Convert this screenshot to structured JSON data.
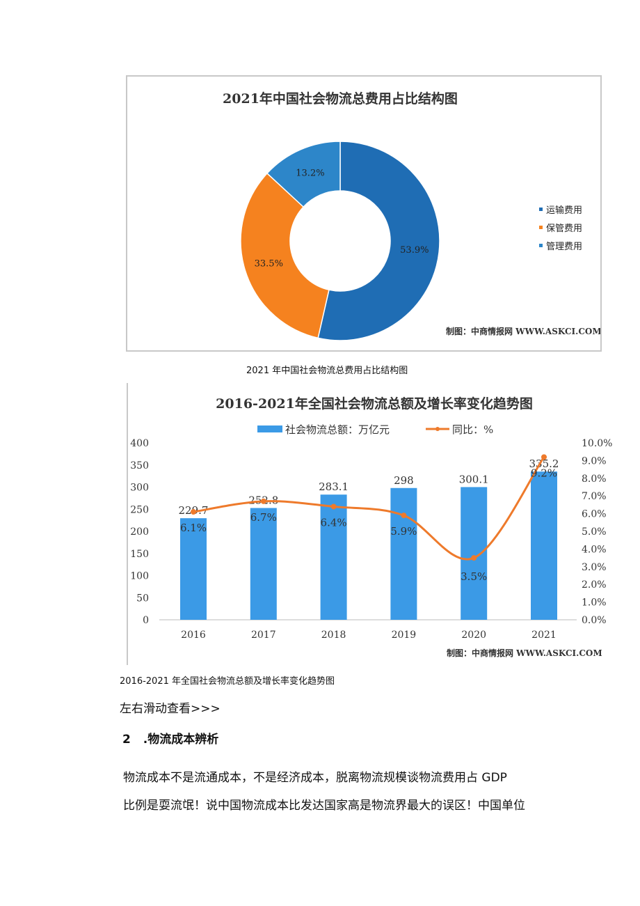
{
  "charts": {
    "donut_caption": "2021 年中国社会物流总费用占比结构图",
    "bar_caption": "2016-2021 年全国社会物流总额及增长率变化趋势图"
  },
  "chart_data": [
    {
      "type": "pie",
      "title": "2021年中国社会物流总费用占比结构图",
      "categories": [
        "运输费用",
        "保管费用",
        "管理费用"
      ],
      "values": [
        53.9,
        33.5,
        13.2
      ],
      "labels": [
        "53.9%",
        "33.5%",
        "13.2%"
      ],
      "colors": [
        "#1f6db4",
        "#f5821f",
        "#2d86c9"
      ],
      "donut": true,
      "legend": "right",
      "source": "制图：中商情报网 WWW.ASKCI.COM"
    },
    {
      "type": "bar",
      "title": "2016-2021年全国社会物流总额及增长率变化趋势图",
      "categories": [
        "2016",
        "2017",
        "2018",
        "2019",
        "2020",
        "2021"
      ],
      "series": [
        {
          "name": "社会物流总额：万亿元",
          "type": "bar",
          "axis": "left",
          "values": [
            229.7,
            252.8,
            283.1,
            298,
            300.1,
            335.2
          ],
          "labels": [
            "229.7",
            "252.8",
            "283.1",
            "298",
            "300.1",
            "335.2"
          ],
          "color": "#3b9ae6"
        },
        {
          "name": "同比：%",
          "type": "line",
          "axis": "right",
          "values": [
            6.1,
            6.7,
            6.4,
            5.9,
            3.5,
            9.2
          ],
          "labels": [
            "6.1%",
            "6.7%",
            "6.4%",
            "5.9%",
            "3.5%",
            "9.2%"
          ],
          "color": "#ee7a2b"
        }
      ],
      "ylim": [
        0,
        400
      ],
      "yticks": [
        "0",
        "50",
        "100",
        "150",
        "200",
        "250",
        "300",
        "350",
        "400"
      ],
      "y2lim": [
        0,
        10
      ],
      "y2ticks": [
        "0.0%",
        "1.0%",
        "2.0%",
        "3.0%",
        "4.0%",
        "5.0%",
        "6.0%",
        "7.0%",
        "8.0%",
        "9.0%",
        "10.0%"
      ],
      "legend": "top",
      "grid": false,
      "source": "制图：中商情报网 WWW.ASKCI.COM"
    }
  ],
  "text": {
    "swipe_hint": "左右滑动查看>>>",
    "section_number": "2",
    "section_title": ".物流成本辨析",
    "para_line1": "物流成本不是流通成本，不是经济成本，脱离物流规模谈物流费用占 GDP",
    "para_line2": "比例是耍流氓！说中国物流成本比发达国家高是物流界最大的误区！中国单位"
  }
}
